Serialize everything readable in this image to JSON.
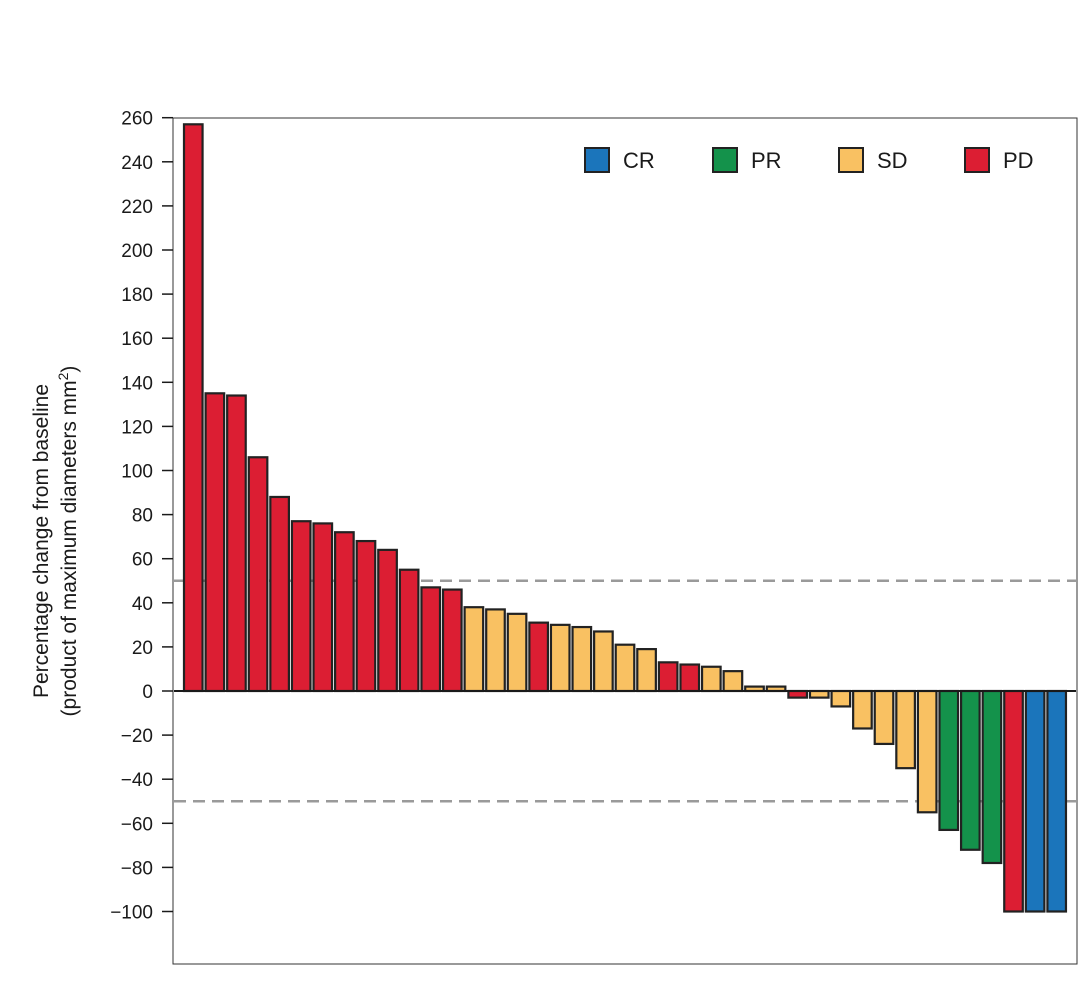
{
  "chart_data": {
    "type": "bar",
    "title": "",
    "ylabel": "Percentage change from baseline",
    "ylabel_sub": "(product of maximum diameters mm",
    "ylabel_sup": "2",
    "ylabel_close": ")",
    "ylim": [
      -125,
      260
    ],
    "yticks": [
      260,
      240,
      220,
      200,
      180,
      160,
      140,
      120,
      100,
      80,
      60,
      40,
      20,
      0,
      -20,
      -40,
      -60,
      -80,
      -100
    ],
    "ytick_labels": [
      "260",
      "240",
      "220",
      "200",
      "180",
      "160",
      "140",
      "120",
      "100",
      "80",
      "60",
      "40",
      "20",
      "0",
      "−20",
      "−40",
      "−60",
      "−80",
      "−100"
    ],
    "reference_lines": [
      50,
      -50
    ],
    "legend_position": "top-right",
    "legend": [
      {
        "key": "CR",
        "label": "CR",
        "color": "#1b75bb"
      },
      {
        "key": "PR",
        "label": "PR",
        "color": "#14924b"
      },
      {
        "key": "SD",
        "label": "SD",
        "color": "#f9c162"
      },
      {
        "key": "PD",
        "label": "PD",
        "color": "#dc1e33"
      }
    ],
    "values": [
      257,
      135,
      134,
      106,
      88,
      77,
      76,
      72,
      68,
      64,
      55,
      47,
      46,
      38,
      37,
      35,
      31,
      30,
      29,
      27,
      21,
      19,
      13,
      12,
      11,
      9,
      2,
      2,
      -3,
      -3,
      -7,
      -17,
      -24,
      -35,
      -55,
      -63,
      -72,
      -78,
      -100,
      -100,
      -100
    ],
    "categories_response": [
      "PD",
      "PD",
      "PD",
      "PD",
      "PD",
      "PD",
      "PD",
      "PD",
      "PD",
      "PD",
      "PD",
      "PD",
      "PD",
      "SD",
      "SD",
      "SD",
      "PD",
      "SD",
      "SD",
      "SD",
      "SD",
      "SD",
      "PD",
      "PD",
      "SD",
      "SD",
      "SD",
      "SD",
      "PD",
      "SD",
      "SD",
      "SD",
      "SD",
      "SD",
      "SD",
      "PR",
      "PR",
      "PR",
      "PD",
      "CR",
      "CR"
    ]
  }
}
